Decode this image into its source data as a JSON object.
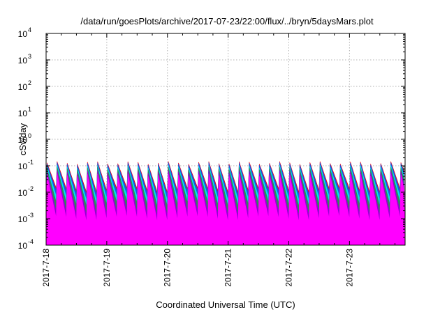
{
  "chart_data": {
    "type": "area",
    "title": "/data/run/goesPlots/archive/2017-07-23/22:00/flux/../bryn/5daysMars.plot",
    "xlabel": "Coordinated Universal Time (UTC)",
    "ylabel": "cSv/day",
    "yscale": "log",
    "ylim": [
      0.0001,
      10000
    ],
    "y_ticks": [
      {
        "base": "10",
        "exp": "-4",
        "value": 0.0001
      },
      {
        "base": "10",
        "exp": "-3",
        "value": 0.001
      },
      {
        "base": "10",
        "exp": "-2",
        "value": 0.01
      },
      {
        "base": "10",
        "exp": "-1",
        "value": 0.1
      },
      {
        "base": "10",
        "exp": "0",
        "value": 1
      },
      {
        "base": "10",
        "exp": "1",
        "value": 10
      },
      {
        "base": "10",
        "exp": "2",
        "value": 100
      },
      {
        "base": "10",
        "exp": "3",
        "value": 1000
      },
      {
        "base": "10",
        "exp": "4",
        "value": 10000
      }
    ],
    "xlim": [
      "2017-07-18 00:00",
      "2017-07-23 22:00"
    ],
    "x_ticks": [
      "2017-7-18",
      "2017-7-19",
      "2017-7-20",
      "2017-7-21",
      "2017-7-22",
      "2017-7-23"
    ],
    "grid": true,
    "period_hours": 4,
    "series": [
      {
        "color": "#ff00ff",
        "peak": 0.045,
        "trough": 0.0009
      },
      {
        "color": "#9400d3",
        "peak": 0.06,
        "trough": 0.0016
      },
      {
        "color": "#2e8b57",
        "peak": 0.08,
        "trough": 0.0035
      },
      {
        "color": "#00e5ee",
        "peak": 0.095,
        "trough": 0.006
      },
      {
        "color": "#2050e0",
        "peak": 0.12,
        "trough": 0.01
      },
      {
        "color": "#ff0000",
        "peak": 0.13,
        "trough": 0.012
      }
    ]
  }
}
